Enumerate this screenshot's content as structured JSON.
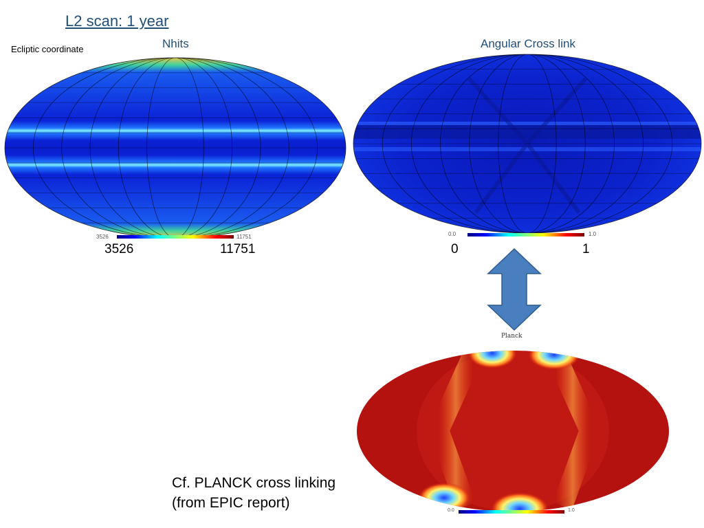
{
  "slide": {
    "title": "L2 scan: 1 year",
    "coordinate_label": "Ecliptic coordinate"
  },
  "maps": {
    "nhits": {
      "title": "Nhits",
      "colorbar_min_label": "3526",
      "colorbar_max_label": "11751",
      "min_label": "3526",
      "max_label": "11751",
      "color_low": "#0a1fd8",
      "color_band": "#2ab0ff"
    },
    "crosslink": {
      "title": "Angular Cross link",
      "colorbar_min_label": "0.0",
      "colorbar_max_label": "1.0",
      "min_label": "0",
      "max_label": "1",
      "color_low": "#0b22c8"
    },
    "planck": {
      "title": "Planck",
      "colorbar_min_label": "0.0",
      "colorbar_max_label": "1.0",
      "color_high": "#a50f0f"
    }
  },
  "arrow": {
    "icon": "double-arrow-vertical-icon",
    "fill": "#4a7fbf",
    "stroke": "#2d5b8f"
  },
  "caption": {
    "line1": "Cf. PLANCK cross linking",
    "line2": "(from EPIC report)"
  }
}
